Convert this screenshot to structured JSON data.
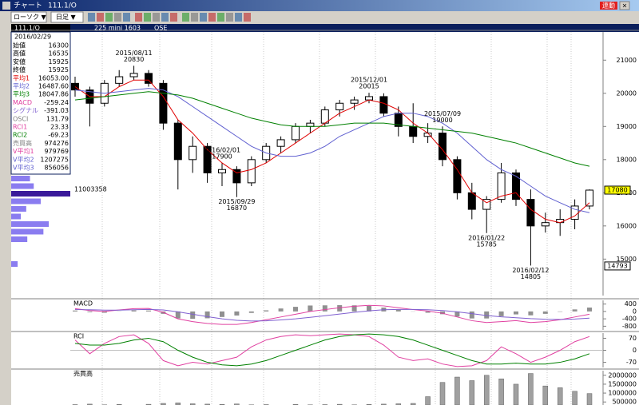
{
  "window": {
    "title": "チャート",
    "symbol": "111.1/O",
    "link_button": "連動",
    "toolbar": {
      "chart_type": "ローソク ▼",
      "period": "日足 ▼"
    },
    "header": {
      "code": "111.1/O",
      "product": "225 mini 1603",
      "exchange": "OSE"
    }
  },
  "info_panel": {
    "date": "2016/02/29",
    "rows": [
      {
        "label": "始値",
        "value": "16300",
        "color": "#000000"
      },
      {
        "label": "高値",
        "value": "16535",
        "color": "#000000"
      },
      {
        "label": "安値",
        "value": "15925",
        "color": "#000000"
      },
      {
        "label": "終値",
        "value": "15925",
        "color": "#000000"
      },
      {
        "label": "平均1",
        "value": "16053.00",
        "color": "#e00000"
      },
      {
        "label": "平均2",
        "value": "16487.60",
        "color": "#6060d0"
      },
      {
        "label": "平均3",
        "value": "18047.86",
        "color": "#008000"
      },
      {
        "label": "MACD",
        "value": "-259.24",
        "color": "#e040a0"
      },
      {
        "label": "シグナル",
        "value": "-391.03",
        "color": "#8060d0"
      },
      {
        "label": "OSCI",
        "value": "131.79",
        "color": "#808080"
      },
      {
        "label": "RCI1",
        "value": "23.33",
        "color": "#e040a0"
      },
      {
        "label": "RCI2",
        "value": "-69.23",
        "color": "#008000"
      },
      {
        "label": "売買高",
        "value": "974276",
        "color": "#808080"
      },
      {
        "label": "V平均1",
        "value": "979769",
        "color": "#e040a0"
      },
      {
        "label": "V平均2",
        "value": "1207275",
        "color": "#6060d0"
      },
      {
        "label": "V平均3",
        "value": "856056",
        "color": "#6060d0"
      }
    ]
  },
  "volume_profile": {
    "values": [
      3500000,
      4200000,
      11003358,
      5500000,
      2800000,
      1800000,
      7000000,
      6000000,
      3000000,
      1200000
    ],
    "xlim": [
      0,
      11003358
    ],
    "color": "#8a7cf0",
    "max_color": "#3a1a9a"
  },
  "chart_data": [
    {
      "type": "candlestick",
      "categories": [
        null,
        null,
        null,
        null,
        null,
        null,
        null,
        null,
        null,
        null,
        null,
        null,
        null,
        null,
        null,
        null,
        null,
        null,
        null,
        null,
        null,
        null,
        null,
        null,
        null,
        null,
        null,
        null,
        null,
        null,
        null,
        null,
        null,
        null,
        null,
        null
      ],
      "candles": {
        "open": [
          20300,
          20100,
          19700,
          20300,
          20500,
          20600,
          20300,
          19100,
          18000,
          18400,
          17600,
          17700,
          17300,
          18000,
          18400,
          18600,
          19000,
          19100,
          19500,
          19700,
          19800,
          19900,
          19400,
          19000,
          18700,
          18800,
          18000,
          17000,
          16500,
          16800,
          17600,
          16800,
          16000,
          16100,
          16200,
          16600
        ],
        "high": [
          20500,
          20200,
          20400,
          20700,
          20830,
          20700,
          20400,
          19200,
          18700,
          18500,
          17900,
          17800,
          18100,
          18500,
          18700,
          19100,
          19200,
          19600,
          19800,
          19900,
          20015,
          20000,
          19600,
          19700,
          19100,
          19000,
          18100,
          17300,
          16900,
          17900,
          17700,
          17100,
          16400,
          16500,
          16800,
          17100
        ],
        "low": [
          19900,
          19000,
          19600,
          20200,
          20400,
          20200,
          18900,
          17100,
          17600,
          17300,
          17200,
          16870,
          17200,
          17900,
          18200,
          18500,
          18800,
          19000,
          19300,
          19500,
          19700,
          19300,
          18700,
          18500,
          18500,
          17800,
          16800,
          16200,
          15785,
          16700,
          16600,
          14805,
          15800,
          15700,
          15900,
          16500
        ],
        "close": [
          20100,
          19700,
          20300,
          20500,
          20600,
          20300,
          19100,
          18000,
          18400,
          17600,
          17700,
          17300,
          18000,
          18400,
          18600,
          19000,
          19100,
          19500,
          19700,
          19800,
          19900,
          19400,
          19000,
          18700,
          18800,
          18000,
          17000,
          16500,
          16800,
          17600,
          16800,
          16000,
          16100,
          16200,
          16600,
          17080
        ],
        "color_up": "#ffffff",
        "color_down": "#000000"
      },
      "series": [
        {
          "name": "平均1",
          "color": "#e00000",
          "values": [
            20200,
            19900,
            19900,
            20200,
            20400,
            20400,
            19900,
            19200,
            18800,
            18300,
            17900,
            17600,
            17700,
            17900,
            18200,
            18500,
            18800,
            19100,
            19400,
            19600,
            19800,
            19700,
            19500,
            19100,
            18800,
            18300,
            17700,
            17000,
            16700,
            16900,
            17000,
            16500,
            16200,
            16100,
            16300,
            16700
          ]
        },
        {
          "name": "平均2",
          "color": "#6060d0",
          "values": [
            20100,
            20050,
            20000,
            20050,
            20100,
            20150,
            20100,
            19900,
            19600,
            19300,
            19000,
            18700,
            18400,
            18200,
            18100,
            18100,
            18200,
            18400,
            18700,
            18900,
            19100,
            19300,
            19400,
            19400,
            19300,
            19100,
            18800,
            18400,
            18000,
            17700,
            17500,
            17200,
            16900,
            16700,
            16500,
            16400
          ]
        },
        {
          "name": "平均3",
          "color": "#008000",
          "values": [
            19800,
            19850,
            19900,
            19950,
            20000,
            20050,
            20000,
            19950,
            19850,
            19700,
            19550,
            19400,
            19250,
            19150,
            19050,
            19000,
            19000,
            19000,
            19050,
            19100,
            19100,
            19100,
            19050,
            19000,
            18950,
            18900,
            18850,
            18800,
            18700,
            18600,
            18500,
            18350,
            18200,
            18050,
            17900,
            17800
          ]
        }
      ],
      "annotations": [
        {
          "date": "2015/07/09",
          "price": 19000
        },
        {
          "date": "2015/08/11",
          "price": 20830
        },
        {
          "date": "2015/09/29",
          "price": 16870
        },
        {
          "date": "2015/12/01",
          "price": 20015
        },
        {
          "date": "2016/01/22",
          "price": 15785
        },
        {
          "date": "2016/02/01",
          "price": 17900
        },
        {
          "date": "2016/02/12",
          "price": 14805
        }
      ],
      "markers": [
        {
          "value": 17080,
          "color": "#ffff00"
        },
        {
          "value": 14793,
          "color": "#ffffff"
        }
      ],
      "ylim": [
        13900,
        21850
      ],
      "yticks": [
        21000,
        20000,
        19000,
        18000,
        17000,
        16000,
        15000
      ]
    },
    {
      "type": "combo",
      "title": "MACD",
      "series": [
        {
          "name": "OSCI",
          "type": "bar",
          "color": "#909090",
          "values": [
            50,
            -40,
            -70,
            10,
            60,
            50,
            -130,
            -380,
            -400,
            -370,
            -300,
            -220,
            -80,
            60,
            160,
            250,
            320,
            330,
            340,
            330,
            300,
            210,
            90,
            -10,
            -70,
            -150,
            -280,
            -380,
            -380,
            -260,
            -160,
            -210,
            -130,
            -20,
            110,
            210
          ]
        },
        {
          "name": "MACD",
          "type": "line",
          "color": "#e040a0",
          "values": [
            150,
            50,
            0,
            80,
            150,
            160,
            -50,
            -400,
            -550,
            -650,
            -700,
            -700,
            -600,
            -450,
            -300,
            -150,
            0,
            100,
            200,
            280,
            330,
            300,
            200,
            100,
            20,
            -100,
            -300,
            -500,
            -600,
            -550,
            -500,
            -600,
            -550,
            -450,
            -300,
            -150
          ]
        },
        {
          "name": "シグナル",
          "type": "line",
          "color": "#8060d0",
          "values": [
            100,
            90,
            70,
            70,
            90,
            110,
            80,
            -20,
            -150,
            -280,
            -400,
            -480,
            -520,
            -510,
            -460,
            -400,
            -320,
            -230,
            -140,
            -50,
            30,
            90,
            110,
            110,
            90,
            50,
            -20,
            -120,
            -220,
            -290,
            -340,
            -390,
            -420,
            -430,
            -410,
            -360
          ]
        }
      ],
      "ylim": [
        -1000,
        600
      ],
      "yticks": [
        400,
        0,
        -400,
        -800
      ]
    },
    {
      "type": "line",
      "title": "RCI",
      "series": [
        {
          "name": "RCI1",
          "color": "#e040a0",
          "values": [
            60,
            -20,
            40,
            80,
            90,
            40,
            -60,
            -90,
            -70,
            -80,
            -60,
            -40,
            20,
            60,
            80,
            90,
            85,
            90,
            95,
            90,
            80,
            30,
            -40,
            -60,
            -50,
            -80,
            -95,
            -90,
            -60,
            20,
            -20,
            -70,
            -40,
            0,
            50,
            80
          ]
        },
        {
          "name": "RCI2",
          "color": "#008000",
          "values": [
            40,
            30,
            30,
            40,
            60,
            70,
            50,
            0,
            -40,
            -70,
            -85,
            -90,
            -80,
            -60,
            -30,
            0,
            30,
            60,
            80,
            90,
            95,
            90,
            80,
            60,
            30,
            0,
            -30,
            -60,
            -80,
            -80,
            -75,
            -80,
            -80,
            -70,
            -50,
            -20
          ]
        }
      ],
      "ylim": [
        -100,
        100
      ],
      "yticks": [
        70,
        0,
        -70
      ]
    },
    {
      "type": "bar",
      "title": "売買高",
      "series": [
        {
          "name": "売買高",
          "color": "#a0a0a0",
          "values": [
            350000,
            380000,
            340000,
            360000,
            330000,
            370000,
            420000,
            450000,
            400000,
            380000,
            360000,
            390000,
            340000,
            350000,
            330000,
            360000,
            340000,
            350000,
            370000,
            340000,
            360000,
            380000,
            400000,
            420000,
            800000,
            1600000,
            1900000,
            1700000,
            2000000,
            1800000,
            1500000,
            2100000,
            1400000,
            1300000,
            1100000,
            974276
          ]
        }
      ],
      "ylim": [
        330000,
        2260000
      ],
      "yticks": [
        2000000,
        1500000,
        1000000,
        500000
      ]
    }
  ]
}
